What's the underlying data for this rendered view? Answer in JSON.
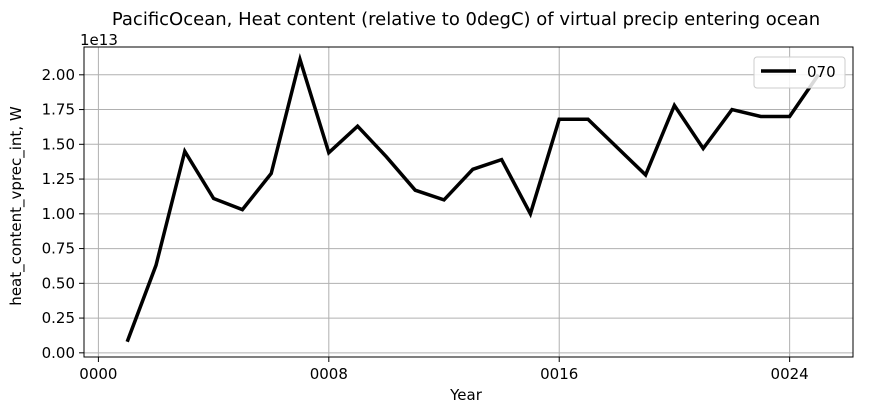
{
  "chart_data": {
    "type": "line",
    "title": "PacificOcean, Heat content (relative to 0degC) of virtual precip entering ocean",
    "xlabel": "Year",
    "ylabel": "heat_content_vprec_int, W",
    "y_offset_label": "1e13",
    "xlim": [
      -0.5,
      26.2
    ],
    "ylim": [
      -0.03,
      2.2
    ],
    "x_ticks": [
      0,
      8,
      16,
      24
    ],
    "x_tick_labels": [
      "0000",
      "0008",
      "0016",
      "0024"
    ],
    "y_ticks": [
      0.0,
      0.25,
      0.5,
      0.75,
      1.0,
      1.25,
      1.5,
      1.75,
      2.0
    ],
    "y_tick_labels": [
      "0.00",
      "0.25",
      "0.50",
      "0.75",
      "1.00",
      "1.25",
      "1.50",
      "1.75",
      "2.00"
    ],
    "grid": true,
    "legend_position": "top-right",
    "series": [
      {
        "name": "070",
        "color": "#000000",
        "x": [
          1,
          2,
          3,
          4,
          5,
          6,
          7,
          8,
          9,
          10,
          11,
          12,
          13,
          14,
          15,
          16,
          17,
          18,
          19,
          20,
          21,
          22,
          23,
          24,
          25
        ],
        "y": [
          0.08,
          0.63,
          1.45,
          1.11,
          1.03,
          1.29,
          2.11,
          1.44,
          1.63,
          1.41,
          1.17,
          1.1,
          1.32,
          1.39,
          1.0,
          1.68,
          1.68,
          1.48,
          1.28,
          1.78,
          1.47,
          1.75,
          1.7,
          1.7,
          2.0
        ]
      }
    ]
  }
}
